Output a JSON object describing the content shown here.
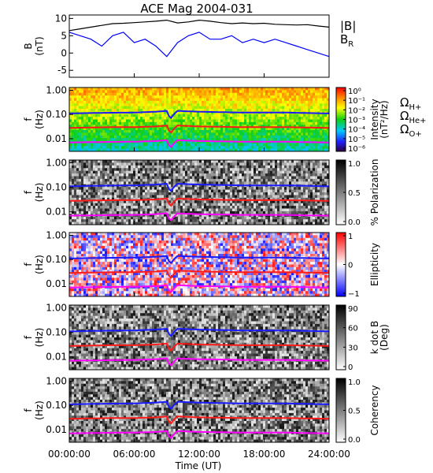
{
  "chart_data": {
    "type": "heatmap",
    "title": "ACE Mag 2004-031",
    "xlabel": "Time (UT)",
    "x_range_hours": [
      0,
      24
    ],
    "x_ticks": [
      "00:00:00",
      "06:00:00",
      "12:00:00",
      "18:00:00",
      "24:00:00"
    ],
    "panels": [
      {
        "type": "line",
        "ylabel": [
          "B",
          "(nT)"
        ],
        "ylim": [
          -7,
          11
        ],
        "yticks": [
          "-5",
          "0",
          "5",
          "10"
        ],
        "series": [
          {
            "name": "|B|",
            "color": "#000000",
            "x": [
              0,
              1,
              2,
              3,
              4,
              5,
              6,
              7,
              8,
              9,
              10,
              11,
              12,
              13,
              14,
              15,
              16,
              17,
              18,
              19,
              20,
              21,
              22,
              23,
              24
            ],
            "y": [
              6.5,
              7,
              7.5,
              8,
              8.5,
              8.6,
              8.8,
              9,
              9.2,
              9.5,
              8.7,
              9,
              9.5,
              9.2,
              8.8,
              8.5,
              8.7,
              8.5,
              8.6,
              8.3,
              8.2,
              8.1,
              8.2,
              7.8,
              7.5
            ]
          },
          {
            "name": "B",
            "name_subscript": "R",
            "color": "#0000ff",
            "x": [
              0,
              1,
              2,
              3,
              4,
              5,
              6,
              7,
              8,
              9,
              10,
              11,
              12,
              13,
              14,
              15,
              16,
              17,
              18,
              19,
              20,
              21,
              22,
              23,
              24
            ],
            "y": [
              6,
              5,
              4,
              2,
              5,
              6,
              3,
              4,
              2,
              -1,
              3,
              5,
              6,
              4,
              4,
              5,
              3,
              4,
              3,
              4,
              3,
              2,
              1,
              0,
              -1
            ]
          }
        ]
      },
      {
        "type": "heatmap",
        "ylabel": [
          "f",
          "(Hz)"
        ],
        "yscale": "log",
        "ylim": [
          0.003,
          1.3
        ],
        "yticks": [
          "1.00",
          "0.10",
          "0.01"
        ],
        "colorbar": {
          "label": [
            "Intensity",
            "(nT²/Hz)"
          ],
          "ticks": [
            "10⁰",
            "10⁻¹",
            "10⁻²",
            "10⁻³",
            "10⁻⁴",
            "10⁻⁵",
            "10⁻⁶"
          ],
          "colormap": "rainbow"
        },
        "legend": [
          {
            "text": "Ω",
            "sub": "H+",
            "color": "#1a1aff"
          },
          {
            "text": "Ω",
            "sub": "He+",
            "color": "#ff1a1a"
          },
          {
            "text": "Ω",
            "sub": "O+",
            "color": "#ff00ff"
          }
        ]
      },
      {
        "type": "heatmap",
        "ylabel": [
          "f",
          "(Hz)"
        ],
        "yscale": "log",
        "ylim": [
          0.003,
          1.3
        ],
        "yticks": [
          "1.00",
          "0.10",
          "0.01"
        ],
        "colorbar": {
          "label": [
            "% Polarization"
          ],
          "ticks": [
            "1.0",
            "0.5",
            "0.0"
          ],
          "colormap": "gray"
        }
      },
      {
        "type": "heatmap",
        "ylabel": [
          "f",
          "(Hz)"
        ],
        "yscale": "log",
        "ylim": [
          0.003,
          1.3
        ],
        "yticks": [
          "1.00",
          "0.10",
          "0.01"
        ],
        "colorbar": {
          "label": [
            "Ellipticity"
          ],
          "ticks": [
            "1",
            "0",
            "−1"
          ],
          "colormap": "blue-white-red"
        }
      },
      {
        "type": "heatmap",
        "ylabel": [
          "f",
          "(Hz)"
        ],
        "yscale": "log",
        "ylim": [
          0.003,
          1.3
        ],
        "yticks": [
          "1.00",
          "0.10",
          "0.01"
        ],
        "colorbar": {
          "label": [
            "k dot B",
            "(Deg)"
          ],
          "ticks": [
            "90",
            "60",
            "30",
            "0"
          ],
          "colormap": "gray"
        }
      },
      {
        "type": "heatmap",
        "ylabel": [
          "f",
          "(Hz)"
        ],
        "yscale": "log",
        "ylim": [
          0.003,
          1.3
        ],
        "yticks": [
          "1.00",
          "0.10",
          "0.01"
        ],
        "colorbar": {
          "label": [
            "Coherency"
          ],
          "ticks": [
            "1.0",
            "0.5",
            "0.0"
          ],
          "colormap": "gray"
        }
      }
    ],
    "gyrofrequency_lines": {
      "x": [
        0,
        2,
        4,
        6,
        8,
        9,
        9.3,
        10,
        12,
        14,
        16,
        18,
        20,
        22,
        24
      ],
      "H+": [
        0.11,
        0.115,
        0.118,
        0.12,
        0.13,
        0.14,
        0.06,
        0.14,
        0.13,
        0.125,
        0.12,
        0.12,
        0.12,
        0.115,
        0.11
      ],
      "He+": [
        0.028,
        0.029,
        0.03,
        0.03,
        0.032,
        0.035,
        0.015,
        0.035,
        0.032,
        0.031,
        0.03,
        0.03,
        0.03,
        0.029,
        0.028
      ],
      "O+": [
        0.007,
        0.0072,
        0.0074,
        0.0075,
        0.008,
        0.0087,
        0.0038,
        0.0087,
        0.008,
        0.0078,
        0.0075,
        0.0075,
        0.0075,
        0.0072,
        0.007
      ]
    }
  }
}
